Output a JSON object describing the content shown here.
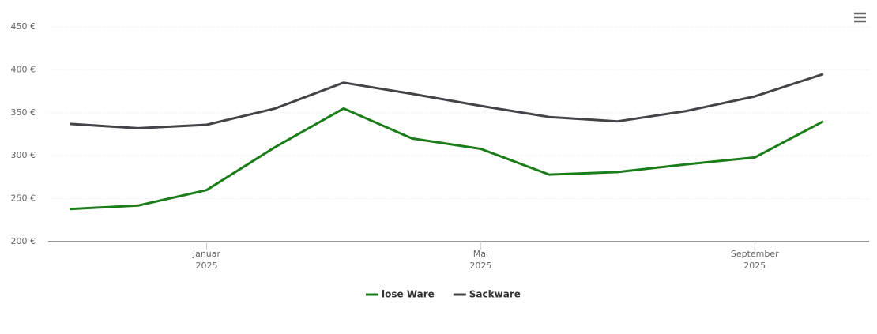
{
  "chart_data": {
    "type": "line",
    "x": [
      "2024-11",
      "2024-12",
      "2025-01",
      "2025-02",
      "2025-03",
      "2025-04",
      "2025-05",
      "2025-06",
      "2025-07",
      "2025-08",
      "2025-09",
      "2025-10"
    ],
    "xlim": [
      "2024-11",
      "2025-10"
    ],
    "xticks": [
      {
        "value": "2025-01",
        "label": "Januar",
        "year": "2025"
      },
      {
        "value": "2025-05",
        "label": "Mai",
        "year": "2025"
      },
      {
        "value": "2025-09",
        "label": "September",
        "year": "2025"
      }
    ],
    "series": [
      {
        "name": "lose Ware",
        "color": "#1a7d1a",
        "values": [
          238,
          242,
          260,
          310,
          355,
          320,
          308,
          278,
          281,
          290,
          298,
          340
        ]
      },
      {
        "name": "Sackware",
        "color": "#434348",
        "values": [
          337,
          332,
          336,
          355,
          385,
          372,
          358,
          345,
          340,
          352,
          369,
          395
        ]
      }
    ],
    "ylim": [
      200,
      450
    ],
    "yticks": [
      {
        "value": 200,
        "label": "200 €"
      },
      {
        "value": 250,
        "label": "250 €"
      },
      {
        "value": 300,
        "label": "300 €"
      },
      {
        "value": 350,
        "label": "350 €"
      },
      {
        "value": 400,
        "label": "400 €"
      },
      {
        "value": 450,
        "label": "450 €"
      }
    ],
    "grid": true
  }
}
